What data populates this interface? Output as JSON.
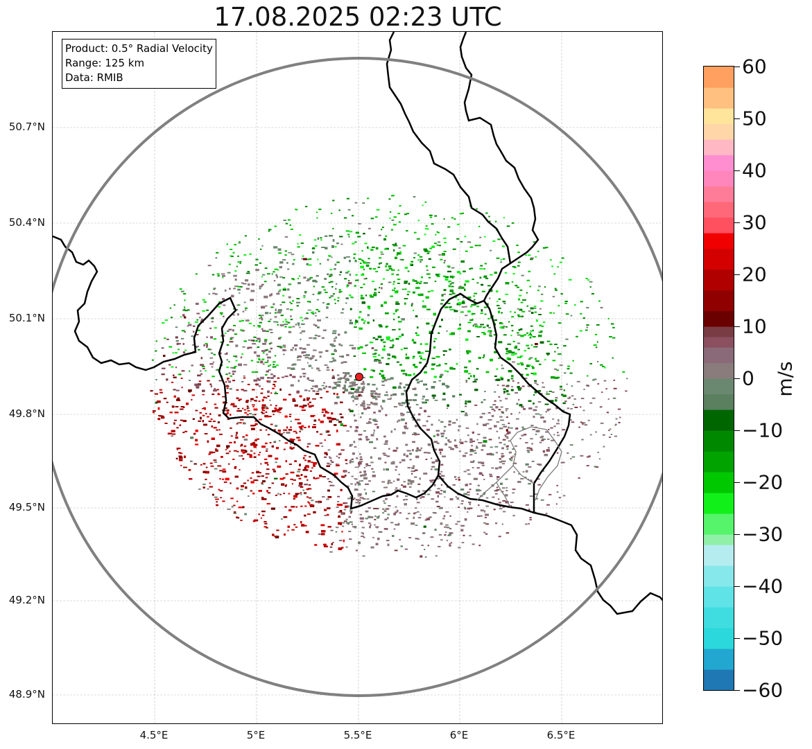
{
  "title": "17.08.2025 02:23 UTC",
  "info_box": {
    "product": "Product: 0.5° Radial Velocity",
    "range": "Range: 125 km",
    "source": "Data: RMIB"
  },
  "lat_ticks": [
    "50.7°N",
    "50.4°N",
    "50.1°N",
    "49.8°N",
    "49.5°N",
    "49.2°N",
    "48.9°N"
  ],
  "lon_ticks": [
    "4.5°E",
    "5°E",
    "5.5°E",
    "6°E",
    "6.5°E"
  ],
  "colorbar": {
    "unit": "m/s",
    "ticks": [
      "60",
      "50",
      "40",
      "30",
      "20",
      "10",
      "0",
      "−10",
      "−20",
      "−30",
      "−40",
      "−50",
      "−60"
    ],
    "range": [
      -60,
      60
    ],
    "colors": [
      {
        "from": -60,
        "to": -56,
        "color": "#1f77b4"
      },
      {
        "from": -56,
        "to": -52,
        "color": "#22a7d0"
      },
      {
        "from": -52,
        "to": -48,
        "color": "#2bd8dc"
      },
      {
        "from": -48,
        "to": -44,
        "color": "#40dde0"
      },
      {
        "from": -44,
        "to": -40,
        "color": "#5fe3e6"
      },
      {
        "from": -40,
        "to": -36,
        "color": "#86e8ea"
      },
      {
        "from": -36,
        "to": -32,
        "color": "#b5ecf0"
      },
      {
        "from": -32,
        "to": -30,
        "color": "#90f0a8"
      },
      {
        "from": -30,
        "to": -26,
        "color": "#55f46a"
      },
      {
        "from": -26,
        "to": -22,
        "color": "#12f01a"
      },
      {
        "from": -22,
        "to": -18,
        "color": "#00c800"
      },
      {
        "from": -18,
        "to": -14,
        "color": "#00a300"
      },
      {
        "from": -14,
        "to": -10,
        "color": "#008800"
      },
      {
        "from": -10,
        "to": -6,
        "color": "#006600"
      },
      {
        "from": -6,
        "to": -3,
        "color": "#5a8060"
      },
      {
        "from": -3,
        "to": 0,
        "color": "#6a8870"
      },
      {
        "from": 0,
        "to": 3,
        "color": "#8a7c7c"
      },
      {
        "from": 3,
        "to": 6,
        "color": "#8a6a78"
      },
      {
        "from": 6,
        "to": 8,
        "color": "#8a5060"
      },
      {
        "from": 8,
        "to": 10,
        "color": "#7a3c44"
      },
      {
        "from": 10,
        "to": 13,
        "color": "#6a0000"
      },
      {
        "from": 13,
        "to": 17,
        "color": "#900000"
      },
      {
        "from": 17,
        "to": 21,
        "color": "#b00000"
      },
      {
        "from": 21,
        "to": 25,
        "color": "#d40000"
      },
      {
        "from": 25,
        "to": 28,
        "color": "#f00000"
      },
      {
        "from": 28,
        "to": 31,
        "color": "#ff5060"
      },
      {
        "from": 31,
        "to": 34,
        "color": "#ff6878"
      },
      {
        "from": 34,
        "to": 37,
        "color": "#ff7c98"
      },
      {
        "from": 37,
        "to": 40,
        "color": "#ff86bc"
      },
      {
        "from": 40,
        "to": 43,
        "color": "#ff8ed0"
      },
      {
        "from": 43,
        "to": 46,
        "color": "#ffb8c4"
      },
      {
        "from": 46,
        "to": 49,
        "color": "#ffd6a8"
      },
      {
        "from": 49,
        "to": 52,
        "color": "#ffe49c"
      },
      {
        "from": 52,
        "to": 56,
        "color": "#ffc080"
      },
      {
        "from": 56,
        "to": 60,
        "color": "#ffa060"
      }
    ]
  },
  "radar_site_color": "#e82020",
  "border_color": "#000000",
  "range_ring_color": "#808080"
}
